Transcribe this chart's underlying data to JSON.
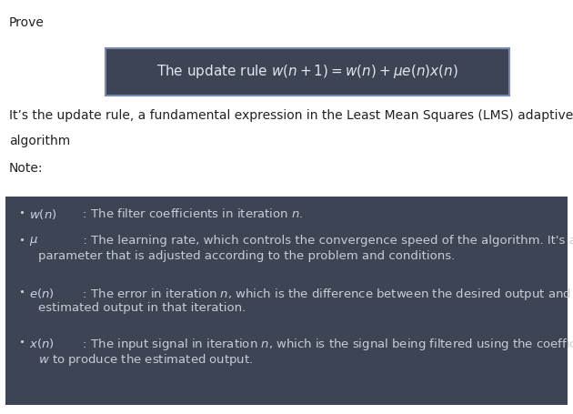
{
  "title": "Prove",
  "formula_box_color": "#3d4555",
  "formula_box_border_color": "#7a8aaa",
  "formula_color": "#e0e4ee",
  "description_line1": "It’s the update rule, a fundamental expression in the Least Mean Squares (LMS) adaptive filter",
  "description_line2": "algorithm",
  "note_label": "Note:",
  "notes_box_color": "#3d4555",
  "bg_color": "#ffffff",
  "text_color": "#222222",
  "notes_text_color": "#c8cdd8",
  "figsize": [
    6.3,
    4.55
  ],
  "dpi": 100
}
